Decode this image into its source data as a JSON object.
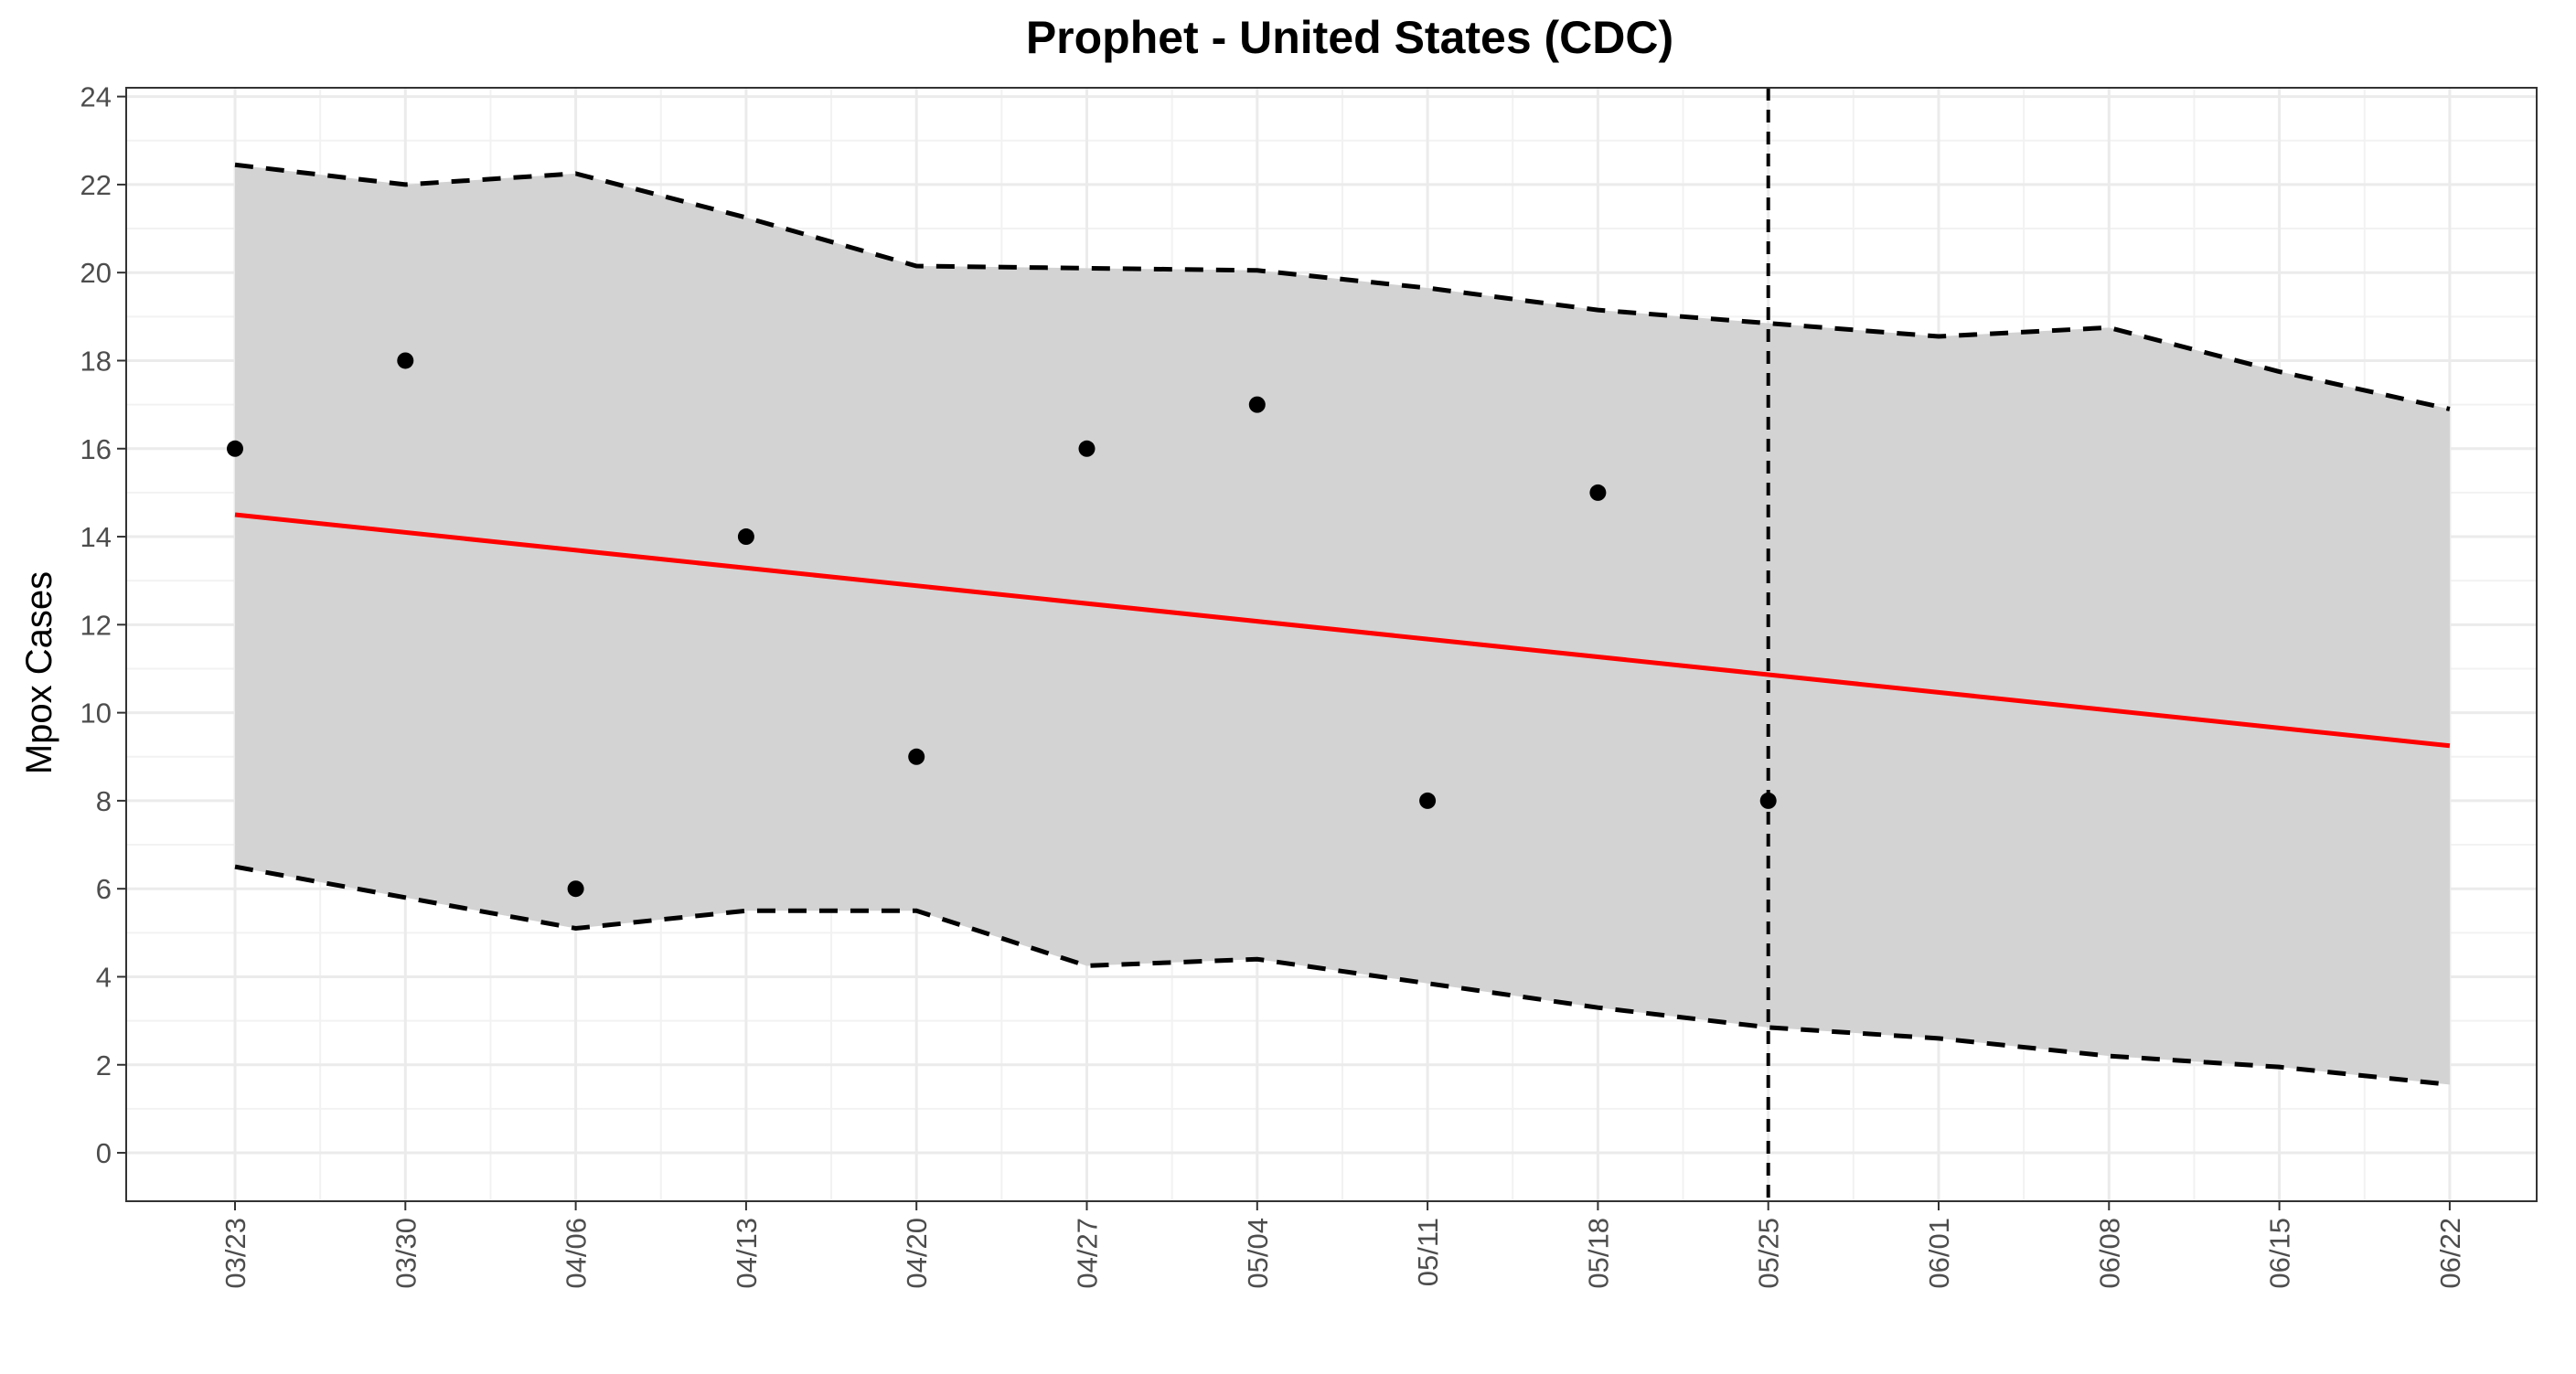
{
  "chart_data": {
    "type": "line",
    "title": "Prophet - United States (CDC)",
    "xlabel": "",
    "ylabel": "Mpox Cases",
    "x_ticks": [
      "03/23",
      "03/30",
      "04/06",
      "04/13",
      "04/20",
      "04/27",
      "05/04",
      "05/11",
      "05/18",
      "05/25",
      "06/01",
      "06/08",
      "06/15",
      "06/22"
    ],
    "ylim": [
      -1.1,
      24.2
    ],
    "y_ticks": [
      0,
      2,
      4,
      6,
      8,
      10,
      12,
      14,
      16,
      18,
      20,
      22,
      24
    ],
    "grid": true,
    "forecast_start": "05/25",
    "series": [
      {
        "kind": "band",
        "x": [
          "03/23",
          "03/30",
          "04/06",
          "04/13",
          "04/20",
          "04/27",
          "05/04",
          "05/11",
          "05/18",
          "05/25",
          "06/01",
          "06/08",
          "06/15",
          "06/22"
        ],
        "lower": [
          6.5,
          5.8,
          5.1,
          5.5,
          5.5,
          4.25,
          4.4,
          3.85,
          3.3,
          2.85,
          2.6,
          2.2,
          1.95,
          1.55
        ],
        "upper": [
          22.45,
          22.0,
          22.25,
          21.25,
          20.15,
          20.1,
          20.05,
          19.65,
          19.15,
          18.85,
          18.55,
          18.75,
          17.75,
          16.9
        ]
      },
      {
        "kind": "line",
        "x": [
          "03/23",
          "06/22"
        ],
        "values": [
          14.5,
          9.25
        ]
      },
      {
        "kind": "points",
        "x": [
          "03/23",
          "03/30",
          "04/06",
          "04/13",
          "04/20",
          "04/27",
          "05/04",
          "05/11",
          "05/18",
          "05/25"
        ],
        "values": [
          16,
          18,
          6,
          14,
          9,
          16,
          17,
          8,
          15,
          8
        ]
      }
    ],
    "colors": {
      "band": "#d3d3d3",
      "trend": "#ff0000",
      "points": "#000000",
      "bounds": "#000000",
      "grid_major": "#ebebeb",
      "grid_minor": "#f2f2f2"
    }
  }
}
